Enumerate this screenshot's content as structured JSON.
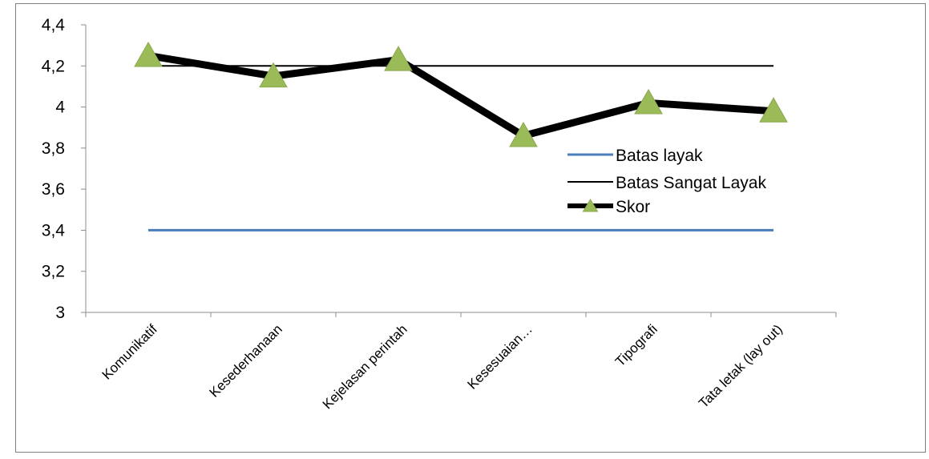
{
  "chart_data": {
    "type": "line",
    "categories": [
      "Komunikatif",
      "Kesederhanaan",
      "Kejelasan perintah",
      "Kesesuaian…",
      "Tipografi",
      "Tata letak (lay out)"
    ],
    "series": [
      {
        "name": "Batas layak",
        "values": [
          3.4,
          3.4,
          3.4,
          3.4,
          3.4,
          3.4
        ],
        "color": "#4a7ebb",
        "marker": "none"
      },
      {
        "name": "Batas Sangat Layak",
        "values": [
          4.2,
          4.2,
          4.2,
          4.2,
          4.2,
          4.2
        ],
        "color": "#000000",
        "marker": "none"
      },
      {
        "name": "Skor",
        "values": [
          4.25,
          4.15,
          4.23,
          3.86,
          4.02,
          3.98
        ],
        "color": "#000000",
        "marker": "triangle",
        "marker_color": "#9bbb59"
      }
    ],
    "ylim": [
      3,
      4.4
    ],
    "yticks": [
      3,
      3.2,
      3.4,
      3.6,
      3.8,
      4,
      4.2,
      4.4
    ],
    "ytick_labels": [
      "3",
      "3,2",
      "3,4",
      "3,6",
      "3,8",
      "4",
      "4,2",
      "4,4"
    ],
    "grid": false,
    "legend_position": "right"
  }
}
